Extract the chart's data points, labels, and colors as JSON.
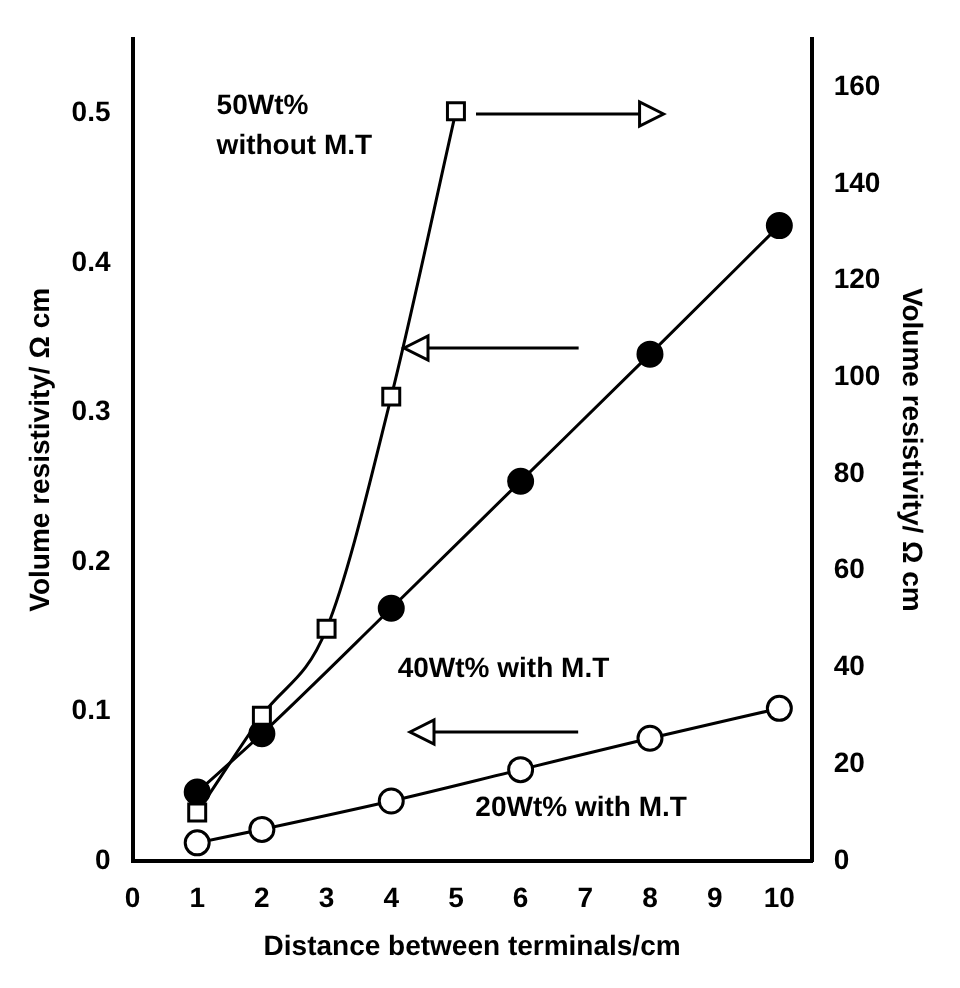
{
  "chart_data": {
    "type": "line",
    "xlabel": "Distance between terminals/cm",
    "ylabel": "Volume resistivity/ Ω cm",
    "y2label": "Volume resistivity/ Ω cm",
    "xlim": [
      0,
      10.5
    ],
    "xticks": [
      0,
      1,
      2,
      3,
      4,
      5,
      6,
      7,
      8,
      9,
      10
    ],
    "ylim": [
      0,
      0.55
    ],
    "yticks": [
      0,
      0.1,
      0.2,
      0.3,
      0.4,
      0.5
    ],
    "y2lim": [
      0,
      170
    ],
    "y2ticks": [
      0,
      20,
      40,
      60,
      80,
      100,
      120,
      140,
      160
    ],
    "grid": false,
    "line_style": "solid",
    "series": [
      {
        "name": "50Wt%\nwithout M.T",
        "axis": "y2",
        "color": "#000000",
        "marker": "square",
        "x": [
          1,
          2,
          3,
          4,
          5
        ],
        "values": [
          10,
          30,
          48,
          96,
          155
        ]
      },
      {
        "name": "40Wt% with M.T",
        "color": "#000000",
        "marker": "circle",
        "x": [
          1,
          2,
          4,
          6,
          8,
          10
        ],
        "values": [
          0.046,
          0.085,
          0.169,
          0.254,
          0.339,
          0.425
        ]
      },
      {
        "name": "20Wt% with M.T",
        "color": "#000000",
        "marker": "circle",
        "x": [
          1,
          2,
          4,
          6,
          8,
          10
        ],
        "values": [
          0.012,
          0.021,
          0.04,
          0.061,
          0.082,
          0.102
        ]
      }
    ]
  }
}
